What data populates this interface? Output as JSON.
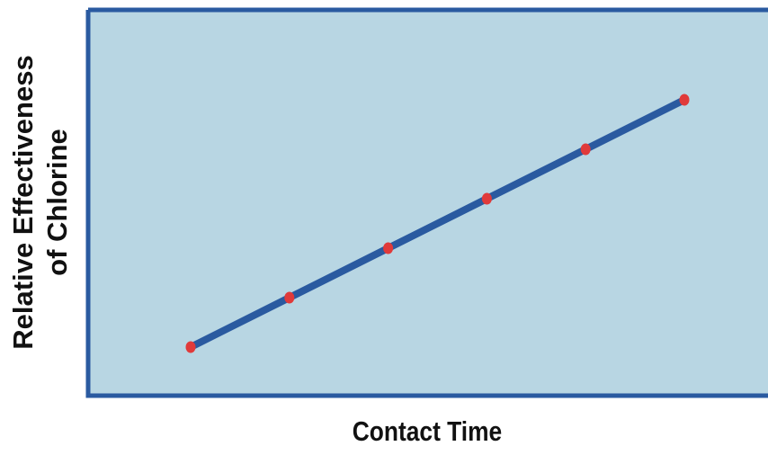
{
  "chart_data": {
    "type": "line",
    "title": "",
    "xlabel": "Contact Time",
    "ylabel_lines": [
      "Relative Effectiveness",
      "of Chlorine"
    ],
    "x": [
      1,
      2,
      3,
      4,
      5,
      6
    ],
    "series": [
      {
        "values": [
          1,
          2,
          3,
          4,
          5,
          6
        ]
      }
    ],
    "xlim": [
      0,
      7
    ],
    "ylim": [
      0,
      8
    ],
    "grid": false,
    "show_ticks": false,
    "colors": {
      "plot_background": "#b8d6e3",
      "frame": "#2a5aa0",
      "line": "#2a5aa0",
      "marker": "#e03a3a"
    }
  }
}
